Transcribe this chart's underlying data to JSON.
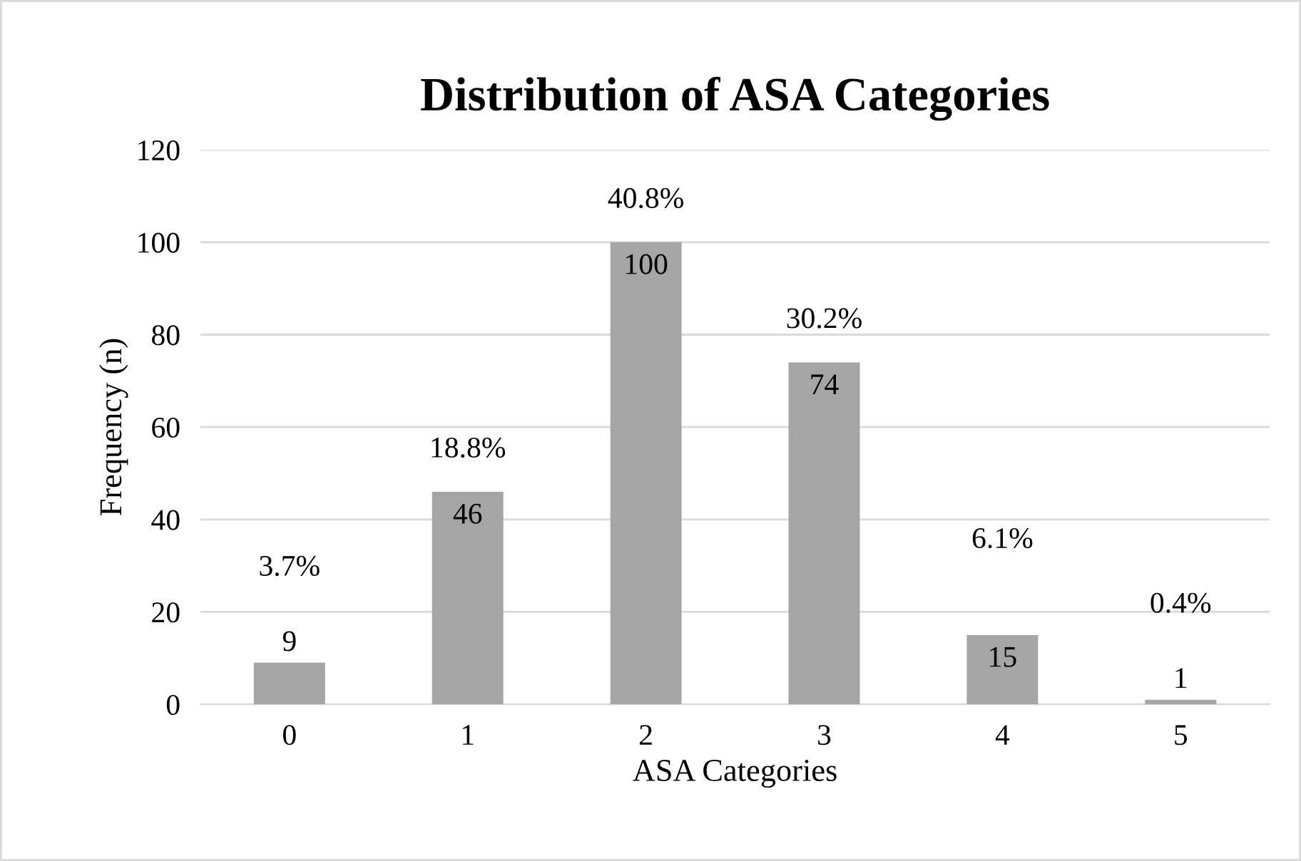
{
  "chart_data": {
    "type": "bar",
    "title": "Distribution of ASA Categories",
    "xlabel": "ASA Categories",
    "ylabel": "Frequency (n)",
    "categories": [
      "0",
      "1",
      "2",
      "3",
      "4",
      "5"
    ],
    "values": [
      9,
      46,
      100,
      74,
      15,
      1
    ],
    "color": "#a5a5a5",
    "ylim": [
      0,
      120
    ],
    "yticks": [
      0,
      20,
      40,
      60,
      80,
      100,
      120
    ],
    "grid": "y",
    "data_labels": true,
    "annotations": [
      {
        "text": "3.7%",
        "x": "0",
        "y": 9
      },
      {
        "text": "18.8%",
        "x": "1",
        "y": 46
      },
      {
        "text": "40.8%",
        "x": "2",
        "y": 100
      },
      {
        "text": "30.2%",
        "x": "3",
        "y": 74
      },
      {
        "text": "6.1%",
        "x": "4",
        "y": 15
      },
      {
        "text": "0.4%",
        "x": "5",
        "y": 1
      }
    ]
  }
}
